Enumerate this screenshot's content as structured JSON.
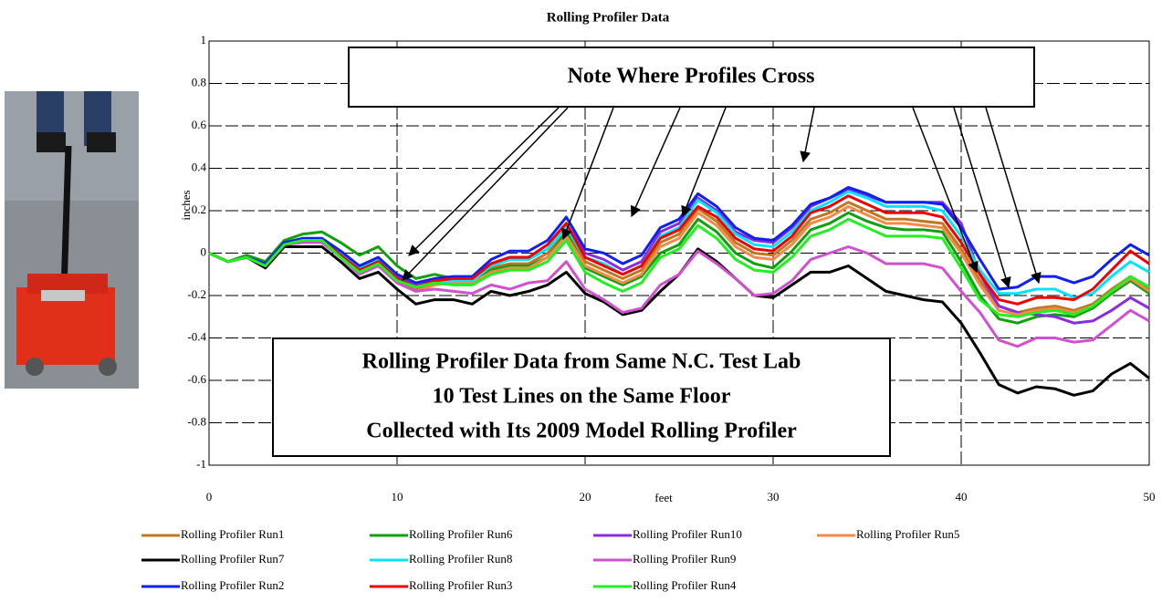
{
  "chart_data": {
    "type": "line",
    "title": "Rolling Profiler Data",
    "x_label": "feet",
    "y_label": "inches",
    "xlim": [
      0,
      50
    ],
    "ylim": [
      -1,
      1
    ],
    "xticks": [
      0,
      10,
      20,
      30,
      40,
      50
    ],
    "yticks": [
      -1,
      -0.8,
      -0.6,
      -0.4,
      -0.2,
      0,
      0.2,
      0.4,
      0.6,
      0.8,
      1
    ],
    "grid": true,
    "annotations": [
      "Note Where Profiles Cross",
      "Rolling Profiler Data from Same N.C. Test Lab",
      "10 Test Lines on the Same Floor",
      "Collected with Its 2009 Model Rolling Profiler"
    ],
    "x": [
      0,
      1,
      2,
      3,
      4,
      5,
      6,
      7,
      8,
      9,
      10,
      11,
      12,
      13,
      14,
      15,
      16,
      17,
      18,
      19,
      20,
      21,
      22,
      23,
      24,
      25,
      26,
      27,
      28,
      29,
      30,
      31,
      32,
      33,
      34,
      35,
      36,
      37,
      38,
      39,
      40,
      41,
      42,
      43,
      44,
      45,
      46,
      47,
      48,
      49,
      50
    ],
    "series": [
      {
        "name": "Rolling Profiler Run1",
        "color": "#c07820",
        "values": [
          0,
          -0.04,
          -0.02,
          -0.06,
          0.04,
          0.06,
          0.06,
          -0.02,
          -0.09,
          -0.04,
          -0.13,
          -0.17,
          -0.14,
          -0.13,
          -0.13,
          -0.07,
          -0.05,
          -0.05,
          0,
          0.1,
          -0.04,
          -0.08,
          -0.12,
          -0.08,
          0.05,
          0.09,
          0.21,
          0.15,
          0.05,
          0,
          -0.01,
          0.06,
          0.16,
          0.19,
          0.24,
          0.2,
          0.16,
          0.16,
          0.15,
          0.14,
          0.02,
          -0.13,
          -0.25,
          -0.28,
          -0.26,
          -0.25,
          -0.27,
          -0.24,
          -0.17,
          -0.11,
          -0.17
        ]
      },
      {
        "name": "Rolling Profiler Run6",
        "color": "#10a010",
        "values": [
          0,
          -0.04,
          -0.01,
          -0.04,
          0.06,
          0.09,
          0.1,
          0.05,
          -0.01,
          0.03,
          -0.06,
          -0.12,
          -0.1,
          -0.12,
          -0.12,
          -0.08,
          -0.06,
          -0.06,
          -0.02,
          0.1,
          -0.07,
          -0.11,
          -0.15,
          -0.11,
          0,
          0.04,
          0.16,
          0.1,
          0,
          -0.05,
          -0.07,
          0.01,
          0.11,
          0.14,
          0.19,
          0.15,
          0.12,
          0.11,
          0.11,
          0.1,
          -0.04,
          -0.2,
          -0.31,
          -0.33,
          -0.3,
          -0.29,
          -0.3,
          -0.26,
          -0.19,
          -0.13,
          -0.19
        ]
      },
      {
        "name": "Rolling Profiler Run10",
        "color": "#8a2be2",
        "values": [
          0,
          -0.04,
          -0.02,
          -0.05,
          0.05,
          0.06,
          0.06,
          0,
          -0.07,
          -0.03,
          -0.11,
          -0.15,
          -0.12,
          -0.12,
          -0.12,
          -0.05,
          -0.02,
          -0.02,
          0.04,
          0.14,
          0,
          -0.03,
          -0.08,
          -0.04,
          0.1,
          0.14,
          0.26,
          0.2,
          0.1,
          0.06,
          0.05,
          0.12,
          0.22,
          0.26,
          0.3,
          0.27,
          0.24,
          0.24,
          0.24,
          0.24,
          0.14,
          -0.1,
          -0.25,
          -0.28,
          -0.29,
          -0.3,
          -0.33,
          -0.32,
          -0.27,
          -0.21,
          -0.26
        ]
      },
      {
        "name": "Rolling Profiler Run5",
        "color": "#f4894a",
        "values": [
          0,
          -0.04,
          -0.02,
          -0.06,
          0.04,
          0.06,
          0.06,
          -0.02,
          -0.09,
          -0.05,
          -0.14,
          -0.18,
          -0.15,
          -0.14,
          -0.14,
          -0.09,
          -0.07,
          -0.07,
          -0.02,
          0.08,
          -0.06,
          -0.1,
          -0.14,
          -0.1,
          0.03,
          0.07,
          0.19,
          0.13,
          0.03,
          -0.02,
          -0.03,
          0.04,
          0.14,
          0.17,
          0.22,
          0.18,
          0.14,
          0.14,
          0.13,
          0.12,
          0,
          -0.15,
          -0.27,
          -0.29,
          -0.27,
          -0.26,
          -0.28,
          -0.25,
          -0.18,
          -0.12,
          -0.18
        ]
      },
      {
        "name": "Rolling Profiler Run7",
        "color": "#000000",
        "values": [
          0,
          -0.04,
          -0.02,
          -0.07,
          0.03,
          0.03,
          0.03,
          -0.04,
          -0.12,
          -0.09,
          -0.17,
          -0.24,
          -0.22,
          -0.22,
          -0.24,
          -0.18,
          -0.2,
          -0.18,
          -0.15,
          -0.09,
          -0.19,
          -0.23,
          -0.29,
          -0.27,
          -0.18,
          -0.1,
          0.02,
          -0.04,
          -0.12,
          -0.2,
          -0.21,
          -0.15,
          -0.09,
          -0.09,
          -0.06,
          -0.12,
          -0.18,
          -0.2,
          -0.22,
          -0.23,
          -0.33,
          -0.47,
          -0.62,
          -0.66,
          -0.63,
          -0.64,
          -0.67,
          -0.65,
          -0.57,
          -0.52,
          -0.59
        ]
      },
      {
        "name": "Rolling Profiler Run8",
        "color": "#00e5ff",
        "values": [
          0,
          -0.04,
          -0.02,
          -0.05,
          0.04,
          0.06,
          0.06,
          0,
          -0.07,
          -0.03,
          -0.12,
          -0.16,
          -0.14,
          -0.13,
          -0.13,
          -0.06,
          -0.03,
          -0.03,
          0.02,
          0.12,
          -0.02,
          -0.05,
          -0.1,
          -0.06,
          0.08,
          0.12,
          0.25,
          0.19,
          0.09,
          0.04,
          0.03,
          0.1,
          0.2,
          0.24,
          0.29,
          0.26,
          0.22,
          0.22,
          0.22,
          0.2,
          0.08,
          -0.08,
          -0.19,
          -0.19,
          -0.17,
          -0.17,
          -0.21,
          -0.19,
          -0.11,
          -0.04,
          -0.09
        ]
      },
      {
        "name": "Rolling Profiler Run9",
        "color": "#d050d0",
        "values": [
          0,
          -0.04,
          -0.02,
          -0.06,
          0.04,
          0.05,
          0.05,
          -0.02,
          -0.1,
          -0.06,
          -0.14,
          -0.18,
          -0.17,
          -0.18,
          -0.19,
          -0.15,
          -0.17,
          -0.14,
          -0.13,
          -0.04,
          -0.17,
          -0.22,
          -0.28,
          -0.26,
          -0.15,
          -0.1,
          0.01,
          -0.05,
          -0.12,
          -0.2,
          -0.19,
          -0.13,
          -0.03,
          0,
          0.03,
          0,
          -0.05,
          -0.05,
          -0.05,
          -0.07,
          -0.18,
          -0.28,
          -0.41,
          -0.44,
          -0.4,
          -0.4,
          -0.42,
          -0.41,
          -0.34,
          -0.27,
          -0.32
        ]
      },
      {
        "name": "Rolling Profiler Run2",
        "color": "#1020f0",
        "values": [
          0,
          -0.04,
          -0.02,
          -0.05,
          0.05,
          0.07,
          0.07,
          0.01,
          -0.06,
          -0.02,
          -0.1,
          -0.14,
          -0.12,
          -0.11,
          -0.11,
          -0.03,
          0.01,
          0.01,
          0.06,
          0.17,
          0.02,
          0,
          -0.05,
          -0.01,
          0.12,
          0.16,
          0.28,
          0.22,
          0.12,
          0.07,
          0.06,
          0.13,
          0.23,
          0.26,
          0.31,
          0.28,
          0.24,
          0.24,
          0.24,
          0.23,
          0.12,
          -0.03,
          -0.17,
          -0.16,
          -0.11,
          -0.11,
          -0.14,
          -0.11,
          -0.03,
          0.04,
          -0.01
        ]
      },
      {
        "name": "Rolling Profiler Run3",
        "color": "#f00000",
        "values": [
          0,
          -0.04,
          -0.02,
          -0.06,
          0.04,
          0.06,
          0.06,
          -0.01,
          -0.08,
          -0.04,
          -0.12,
          -0.16,
          -0.13,
          -0.12,
          -0.12,
          -0.05,
          -0.02,
          -0.02,
          0.04,
          0.14,
          -0.02,
          -0.06,
          -0.1,
          -0.06,
          0.07,
          0.11,
          0.22,
          0.17,
          0.07,
          0.02,
          0.01,
          0.08,
          0.19,
          0.22,
          0.27,
          0.23,
          0.19,
          0.19,
          0.19,
          0.17,
          0.05,
          -0.1,
          -0.22,
          -0.24,
          -0.21,
          -0.21,
          -0.22,
          -0.17,
          -0.08,
          0.01,
          -0.05
        ]
      },
      {
        "name": "Rolling Profiler Run4",
        "color": "#20f020",
        "values": [
          0,
          -0.04,
          -0.02,
          -0.06,
          0.04,
          0.06,
          0.06,
          -0.02,
          -0.09,
          -0.05,
          -0.13,
          -0.16,
          -0.14,
          -0.15,
          -0.15,
          -0.1,
          -0.08,
          -0.08,
          -0.04,
          0.06,
          -0.09,
          -0.14,
          -0.18,
          -0.14,
          -0.02,
          0.02,
          0.13,
          0.07,
          -0.03,
          -0.08,
          -0.09,
          -0.02,
          0.08,
          0.11,
          0.16,
          0.12,
          0.08,
          0.08,
          0.08,
          0.07,
          -0.07,
          -0.22,
          -0.29,
          -0.3,
          -0.28,
          -0.27,
          -0.29,
          -0.25,
          -0.18,
          -0.11,
          -0.16
        ]
      }
    ]
  }
}
